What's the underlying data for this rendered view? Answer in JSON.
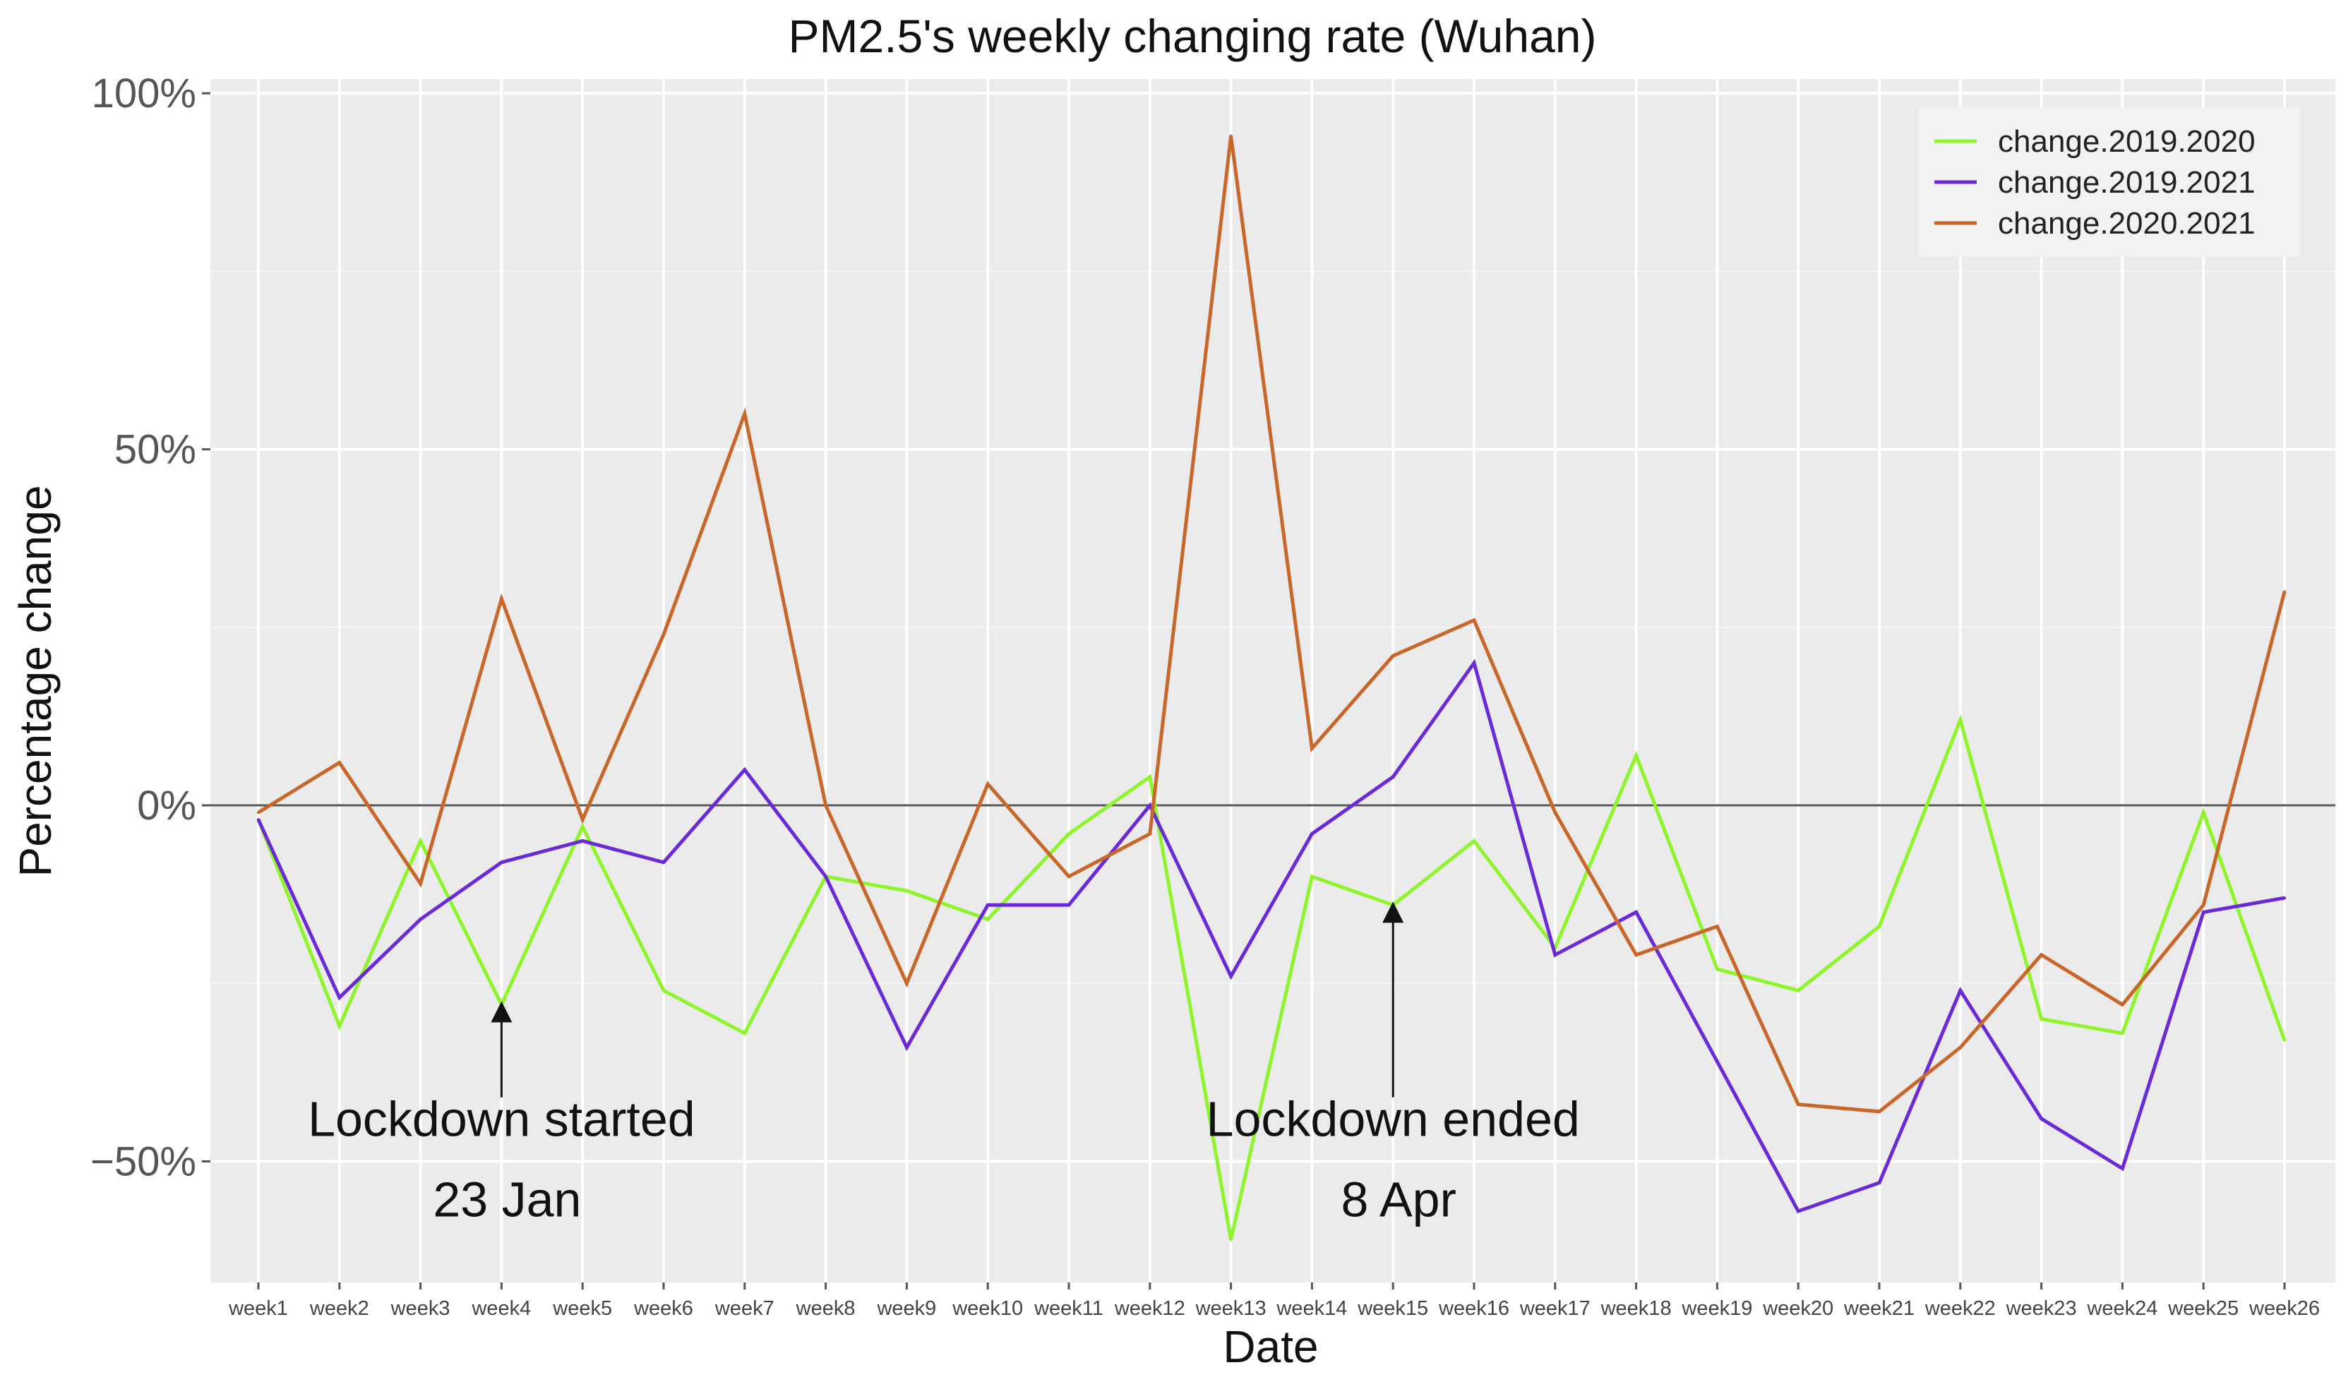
{
  "chart_data": {
    "type": "line",
    "title": "PM2.5's weekly changing rate (Wuhan)",
    "xlabel": "Date",
    "ylabel": "Percentage change",
    "categories": [
      "week1",
      "week2",
      "week3",
      "week4",
      "week5",
      "week6",
      "week7",
      "week8",
      "week9",
      "week10",
      "week11",
      "week12",
      "week13",
      "week14",
      "week15",
      "week16",
      "week17",
      "week18",
      "week19",
      "week20",
      "week21",
      "week22",
      "week23",
      "week24",
      "week25",
      "week26"
    ],
    "ylim": [
      -67,
      102
    ],
    "yticks": [
      {
        "value": 100,
        "label": "100%"
      },
      {
        "value": 50,
        "label": "50%"
      },
      {
        "value": 0,
        "label": "0%"
      },
      {
        "value": -50,
        "label": "−50%"
      }
    ],
    "grid": true,
    "legend_position": "top-right",
    "series": [
      {
        "name": "change.2019.2020",
        "color": "#8ef52a",
        "values": [
          -2,
          -31,
          -5,
          -28,
          -3,
          -26,
          -32,
          -10,
          -12,
          -16,
          -4,
          4,
          -61,
          -10,
          -14,
          -5,
          -20,
          7,
          -23,
          -26,
          -17,
          12,
          -30,
          -32,
          -1,
          -33
        ]
      },
      {
        "name": "change.2019.2021",
        "color": "#6a2ad8",
        "values": [
          -2,
          -27,
          -16,
          -8,
          -5,
          -8,
          5,
          -10,
          -34,
          -14,
          -14,
          0,
          -24,
          -4,
          4,
          20,
          -21,
          -15,
          -36,
          -57,
          -53,
          -26,
          -44,
          -51,
          -15,
          -13
        ]
      },
      {
        "name": "change.2020.2021",
        "color": "#c9662a",
        "values": [
          -1,
          6,
          -11,
          29,
          -2,
          24,
          55,
          0,
          -25,
          3,
          -10,
          -4,
          94,
          8,
          21,
          26,
          -1,
          -21,
          -17,
          -42,
          -43,
          -34,
          -21,
          -28,
          -14,
          30
        ]
      }
    ],
    "annotations": [
      {
        "week": "week4",
        "arrow_tip_value": -29,
        "arrow_tail_value": -41,
        "line1": "Lockdown started",
        "line2": "23 Jan"
      },
      {
        "week": "week15",
        "arrow_tip_value": -15,
        "arrow_tail_value": -41,
        "line1": "Lockdown ended",
        "line2": "8 Apr"
      }
    ],
    "zero_line": true
  }
}
